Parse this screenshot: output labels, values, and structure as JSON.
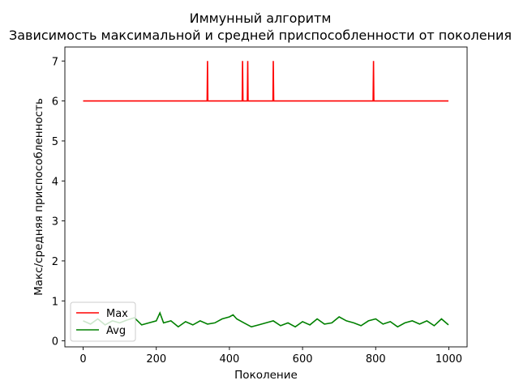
{
  "chart_data": {
    "type": "line",
    "title": "Иммунный алгоритм",
    "subtitle": "Зависимость максимальной и средней приспособленности от поколения",
    "xlabel": "Поколение",
    "ylabel": "Макс/средняя приспособленность",
    "xlim": [
      -50,
      1050
    ],
    "ylim": [
      -0.15,
      7.35
    ],
    "xticks": [
      0,
      200,
      400,
      600,
      800,
      1000
    ],
    "yticks": [
      0,
      1,
      2,
      3,
      4,
      5,
      6,
      7
    ],
    "grid": false,
    "legend": "lower-left",
    "series": [
      {
        "name": "Max",
        "color": "#ff0000",
        "baseline": 6,
        "x_range": [
          0,
          999
        ],
        "spikes": [
          {
            "x": 340,
            "y": 7
          },
          {
            "x": 436,
            "y": 7
          },
          {
            "x": 450,
            "y": 7
          },
          {
            "x": 520,
            "y": 7
          },
          {
            "x": 794,
            "y": 7
          }
        ]
      },
      {
        "name": "Avg",
        "color": "#008000",
        "x": [
          0,
          20,
          40,
          60,
          80,
          100,
          120,
          140,
          160,
          180,
          200,
          210,
          220,
          240,
          260,
          280,
          300,
          320,
          340,
          360,
          380,
          400,
          410,
          420,
          440,
          460,
          480,
          500,
          520,
          540,
          560,
          580,
          600,
          620,
          640,
          660,
          680,
          700,
          720,
          740,
          760,
          780,
          800,
          820,
          840,
          860,
          880,
          900,
          920,
          940,
          960,
          980,
          999
        ],
        "values": [
          0.5,
          0.42,
          0.55,
          0.4,
          0.5,
          0.45,
          0.52,
          0.58,
          0.4,
          0.45,
          0.5,
          0.7,
          0.45,
          0.5,
          0.35,
          0.48,
          0.4,
          0.5,
          0.42,
          0.45,
          0.55,
          0.6,
          0.65,
          0.55,
          0.45,
          0.35,
          0.4,
          0.45,
          0.5,
          0.38,
          0.45,
          0.35,
          0.48,
          0.4,
          0.55,
          0.42,
          0.45,
          0.6,
          0.5,
          0.45,
          0.38,
          0.5,
          0.55,
          0.42,
          0.48,
          0.35,
          0.45,
          0.5,
          0.42,
          0.5,
          0.38,
          0.55,
          0.4
        ]
      }
    ]
  }
}
